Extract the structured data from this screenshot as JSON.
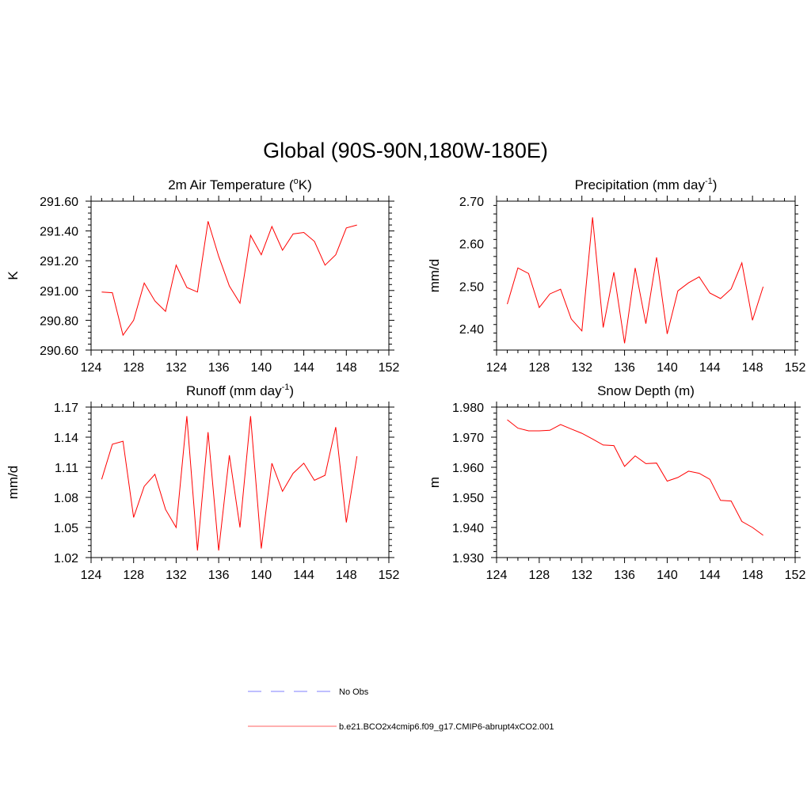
{
  "figure": {
    "title": "Global (90S-90N,180W-180E)"
  },
  "chart_data": [
    {
      "type": "line",
      "title": "2m Air Temperature (",
      "title_sup": "o",
      "title_tail": "K)",
      "ylabel": "K",
      "xlim": [
        124,
        152
      ],
      "ylim": [
        290.6,
        291.6
      ],
      "xticks": [
        124,
        128,
        132,
        136,
        140,
        144,
        148,
        152
      ],
      "xtick_labels": [
        "124",
        "128",
        "132",
        "136",
        "140",
        "144",
        "148",
        "152"
      ],
      "yticks": [
        290.6,
        290.8,
        291.0,
        291.2,
        291.4,
        291.6
      ],
      "ytick_labels": [
        "290.60",
        "290.80",
        "291.00",
        "291.20",
        "291.40",
        "291.60"
      ],
      "series": [
        {
          "name": "b.e21.BCO2x4cmip6.f09_g17.CMIP6-abrupt4xCO2.001",
          "x": [
            125,
            126,
            127,
            128,
            129,
            130,
            131,
            132,
            133,
            134,
            135,
            136,
            137,
            138,
            139,
            140,
            141,
            142,
            143,
            144,
            145,
            146,
            147,
            148,
            149
          ],
          "values": [
            290.99,
            290.985,
            290.7,
            290.8,
            291.05,
            290.93,
            290.86,
            291.17,
            291.02,
            290.99,
            291.465,
            291.23,
            291.03,
            290.915,
            291.37,
            291.24,
            291.43,
            291.27,
            291.38,
            291.39,
            291.33,
            291.17,
            291.24,
            291.42,
            291.44
          ]
        }
      ]
    },
    {
      "type": "line",
      "title": "Precipitation (mm day",
      "title_sup": "-1",
      "title_tail": ")",
      "ylabel": "mm/d",
      "xlim": [
        124,
        152
      ],
      "ylim": [
        2.35,
        2.7
      ],
      "xticks": [
        124,
        128,
        132,
        136,
        140,
        144,
        148,
        152
      ],
      "xtick_labels": [
        "124",
        "128",
        "132",
        "136",
        "140",
        "144",
        "148",
        "152"
      ],
      "yticks": [
        2.4,
        2.5,
        2.6,
        2.7
      ],
      "ytick_labels": [
        "2.40",
        "2.50",
        "2.60",
        "2.70"
      ],
      "series": [
        {
          "name": "b.e21.BCO2x4cmip6.f09_g17.CMIP6-abrupt4xCO2.001",
          "x": [
            125,
            126,
            127,
            128,
            129,
            130,
            131,
            132,
            133,
            134,
            135,
            136,
            137,
            138,
            139,
            140,
            141,
            142,
            143,
            144,
            145,
            146,
            147,
            148,
            149
          ],
          "values": [
            2.458,
            2.543,
            2.53,
            2.45,
            2.482,
            2.493,
            2.423,
            2.395,
            2.662,
            2.403,
            2.533,
            2.366,
            2.543,
            2.412,
            2.568,
            2.388,
            2.489,
            2.508,
            2.522,
            2.484,
            2.471,
            2.494,
            2.555,
            2.42,
            2.499
          ]
        }
      ]
    },
    {
      "type": "line",
      "title": "Runoff (mm day",
      "title_sup": "-1",
      "title_tail": ")",
      "ylabel": "mm/d",
      "xlim": [
        124,
        152
      ],
      "ylim": [
        1.02,
        1.17
      ],
      "xticks": [
        124,
        128,
        132,
        136,
        140,
        144,
        148,
        152
      ],
      "xtick_labels": [
        "124",
        "128",
        "132",
        "136",
        "140",
        "144",
        "148",
        "152"
      ],
      "yticks": [
        1.02,
        1.05,
        1.08,
        1.11,
        1.14,
        1.17
      ],
      "ytick_labels": [
        "1.02",
        "1.05",
        "1.08",
        "1.11",
        "1.14",
        "1.17"
      ],
      "series": [
        {
          "name": "b.e21.BCO2x4cmip6.f09_g17.CMIP6-abrupt4xCO2.001",
          "x": [
            125,
            126,
            127,
            128,
            129,
            130,
            131,
            132,
            133,
            134,
            135,
            136,
            137,
            138,
            139,
            140,
            141,
            142,
            143,
            144,
            145,
            146,
            147,
            148,
            149
          ],
          "values": [
            1.098,
            1.133,
            1.136,
            1.06,
            1.091,
            1.103,
            1.068,
            1.05,
            1.161,
            1.027,
            1.145,
            1.027,
            1.122,
            1.05,
            1.161,
            1.029,
            1.114,
            1.086,
            1.104,
            1.114,
            1.097,
            1.102,
            1.15,
            1.055,
            1.121
          ]
        }
      ]
    },
    {
      "type": "line",
      "title": "Snow Depth (m)",
      "title_sup": "",
      "title_tail": "",
      "ylabel": "m",
      "xlim": [
        124,
        152
      ],
      "ylim": [
        1.93,
        1.98
      ],
      "xticks": [
        124,
        128,
        132,
        136,
        140,
        144,
        148,
        152
      ],
      "xtick_labels": [
        "124",
        "128",
        "132",
        "136",
        "140",
        "144",
        "148",
        "152"
      ],
      "yticks": [
        1.93,
        1.94,
        1.95,
        1.96,
        1.97,
        1.98
      ],
      "ytick_labels": [
        "1.930",
        "1.940",
        "1.950",
        "1.960",
        "1.970",
        "1.980"
      ],
      "series": [
        {
          "name": "b.e21.BCO2x4cmip6.f09_g17.CMIP6-abrupt4xCO2.001",
          "x": [
            125,
            126,
            127,
            128,
            129,
            130,
            131,
            132,
            133,
            134,
            135,
            136,
            137,
            138,
            139,
            140,
            141,
            142,
            143,
            144,
            145,
            146,
            147,
            148,
            149
          ],
          "values": [
            1.9758,
            1.973,
            1.9721,
            1.9721,
            1.9723,
            1.9742,
            1.9727,
            1.9713,
            1.9694,
            1.9674,
            1.9672,
            1.9603,
            1.9638,
            1.9612,
            1.9614,
            1.9554,
            1.9566,
            1.9587,
            1.958,
            1.956,
            1.949,
            1.9488,
            1.942,
            1.94,
            1.9374
          ]
        }
      ]
    }
  ],
  "legend": {
    "items": [
      {
        "label": "No Obs",
        "color": "#9999ff",
        "dash": true
      },
      {
        "label": "b.e21.BCO2x4cmip6.f09_g17.CMIP6-abrupt4xCO2.001",
        "color": "#ff6666",
        "dash": false
      }
    ]
  }
}
